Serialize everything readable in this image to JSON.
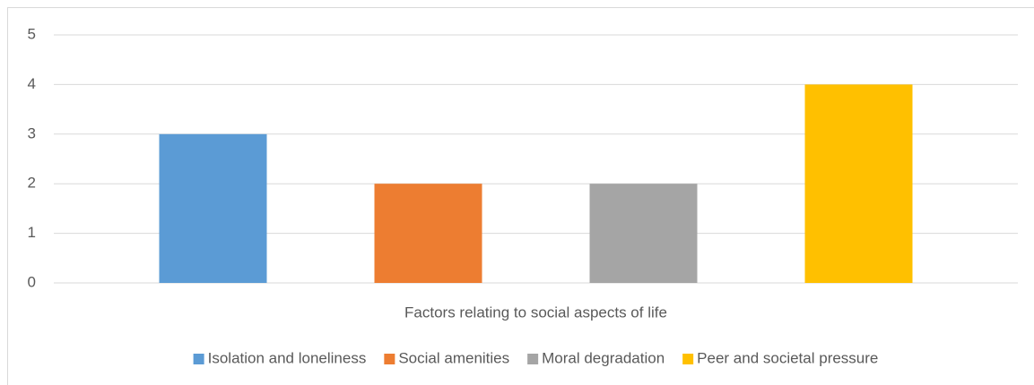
{
  "chart_data": {
    "type": "bar",
    "categories": [
      "Factors relating to social aspects of life"
    ],
    "series": [
      {
        "name": "Isolation and loneliness",
        "color": "#5b9bd5",
        "values": [
          3
        ]
      },
      {
        "name": "Social amenities",
        "color": "#ed7d31",
        "values": [
          2
        ]
      },
      {
        "name": "Moral degradation",
        "color": "#a5a5a5",
        "values": [
          2
        ]
      },
      {
        "name": "Peer and societal pressure",
        "color": "#ffc000",
        "values": [
          4
        ]
      }
    ],
    "ylim": [
      0,
      5
    ],
    "yticks": [
      0,
      1,
      2,
      3,
      4,
      5
    ],
    "grid": true,
    "legend": "bottom"
  }
}
